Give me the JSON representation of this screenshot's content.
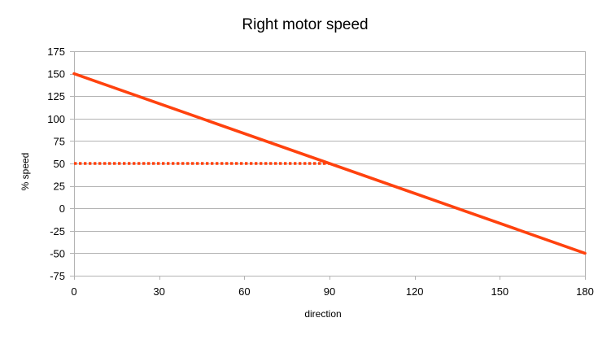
{
  "chart_data": {
    "type": "line",
    "title": "Right motor speed",
    "xlabel": "direction",
    "ylabel": "% speed",
    "xlim": [
      0,
      180
    ],
    "ylim": [
      -75,
      175
    ],
    "x_ticks": [
      0,
      30,
      60,
      90,
      120,
      150,
      180
    ],
    "y_ticks": [
      175,
      150,
      125,
      100,
      75,
      50,
      25,
      0,
      -25,
      -50,
      -75
    ],
    "grid": "horizontal",
    "legend": "none",
    "series": [
      {
        "style": "solid",
        "color": "#ff420e",
        "x": [
          0,
          180
        ],
        "y": [
          150,
          -50
        ]
      },
      {
        "style": "dotted",
        "color": "#ff420e",
        "x": [
          0,
          90
        ],
        "y": [
          50,
          50
        ]
      }
    ]
  }
}
